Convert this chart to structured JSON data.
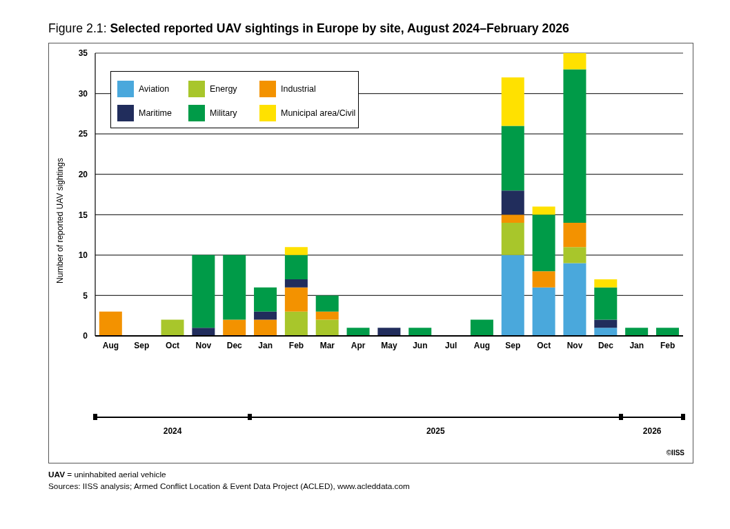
{
  "chart_data": {
    "type": "bar",
    "title": "Figure 2.1: Selected reported UAV sightings in Europe by site, August 2024–February 2026",
    "ylabel": "Number of reported UAV sightings",
    "categories": [
      "Aug",
      "Sep",
      "Oct",
      "Nov",
      "Dec",
      "Jan",
      "Feb",
      "Mar",
      "Apr",
      "May",
      "Jun",
      "Jul",
      "Aug",
      "Sep",
      "Oct",
      "Nov",
      "Dec",
      "Jan",
      "Feb"
    ],
    "series": [
      {
        "name": "Aviation",
        "color": "#4aa8dc",
        "values": [
          0,
          0,
          0,
          0,
          0,
          0,
          0,
          0,
          0,
          0,
          0,
          0,
          0,
          10,
          6,
          9,
          1,
          0,
          0
        ]
      },
      {
        "name": "Energy",
        "color": "#a8c62b",
        "values": [
          0,
          0,
          2,
          0,
          0,
          0,
          3,
          2,
          0,
          0,
          0,
          0,
          0,
          4,
          0,
          2,
          0,
          0,
          0
        ]
      },
      {
        "name": "Industrial",
        "color": "#f39200",
        "values": [
          3,
          0,
          0,
          0,
          2,
          2,
          3,
          1,
          0,
          0,
          0,
          0,
          0,
          1,
          2,
          3,
          0,
          0,
          0
        ]
      },
      {
        "name": "Maritime",
        "color": "#212d5c",
        "values": [
          0,
          0,
          0,
          1,
          0,
          1,
          1,
          0,
          0,
          1,
          0,
          0,
          0,
          3,
          0,
          0,
          1,
          0,
          0
        ]
      },
      {
        "name": "Military",
        "color": "#009b48",
        "values": [
          0,
          0,
          0,
          9,
          8,
          3,
          3,
          2,
          1,
          0,
          1,
          0,
          2,
          8,
          7,
          19,
          4,
          1,
          1
        ]
      },
      {
        "name": "Municipal area/Civil",
        "color": "#ffe100",
        "values": [
          0,
          0,
          0,
          0,
          0,
          0,
          1,
          0,
          0,
          0,
          0,
          0,
          0,
          6,
          1,
          2,
          1,
          0,
          0
        ]
      }
    ],
    "stacked": true,
    "ylim": [
      0,
      35
    ],
    "yticks": [
      0,
      5,
      10,
      15,
      20,
      25,
      30,
      35
    ],
    "grid": "y",
    "legend": "top left",
    "annotations": [
      "2024",
      "2025",
      "2026",
      "©IISS",
      "UAV = uninhabited aerial vehicle",
      "Sources: IISS analysis; Armed Conflict Location & Event Data Project (ACLED), www.acleddata.com"
    ]
  }
}
